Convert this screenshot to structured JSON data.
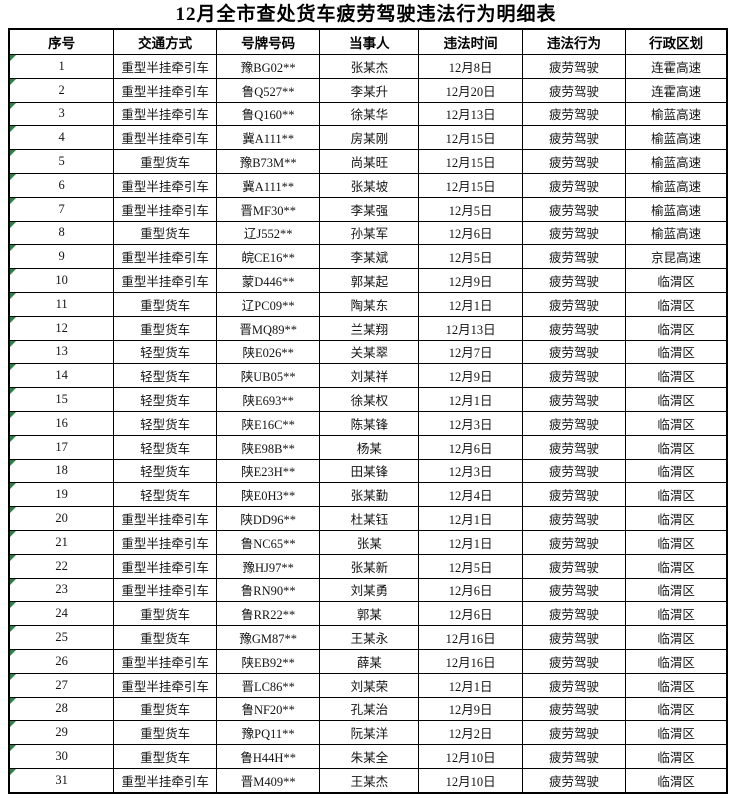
{
  "title": "12月全市查处货车疲劳驾驶违法行为明细表",
  "colors": {
    "background": "#ffffff",
    "border": "#000000",
    "text": "#141414",
    "cell_marker_green": "#1f8a3d"
  },
  "icons": {
    "cell_marker": "corner-triangle-icon"
  },
  "table": {
    "columns": [
      "序号",
      "交通方式",
      "号牌号码",
      "当事人",
      "违法时间",
      "违法行为",
      "行政区划"
    ],
    "rows": [
      [
        "1",
        "重型半挂牵引车",
        "豫BG02**",
        "张某杰",
        "12月8日",
        "疲劳驾驶",
        "连霍高速"
      ],
      [
        "2",
        "重型半挂牵引车",
        "鲁Q527**",
        "李某升",
        "12月20日",
        "疲劳驾驶",
        "连霍高速"
      ],
      [
        "3",
        "重型半挂牵引车",
        "鲁Q160**",
        "徐某华",
        "12月13日",
        "疲劳驾驶",
        "榆蓝高速"
      ],
      [
        "4",
        "重型半挂牵引车",
        "冀A111**",
        "房某刚",
        "12月15日",
        "疲劳驾驶",
        "榆蓝高速"
      ],
      [
        "5",
        "重型货车",
        "豫B73M**",
        "尚某旺",
        "12月15日",
        "疲劳驾驶",
        "榆蓝高速"
      ],
      [
        "6",
        "重型半挂牵引车",
        "冀A111**",
        "张某坡",
        "12月15日",
        "疲劳驾驶",
        "榆蓝高速"
      ],
      [
        "7",
        "重型半挂牵引车",
        "晋MF30**",
        "李某强",
        "12月5日",
        "疲劳驾驶",
        "榆蓝高速"
      ],
      [
        "8",
        "重型货车",
        "辽J552**",
        "孙某军",
        "12月6日",
        "疲劳驾驶",
        "榆蓝高速"
      ],
      [
        "9",
        "重型半挂牵引车",
        "皖CE16**",
        "李某斌",
        "12月5日",
        "疲劳驾驶",
        "京昆高速"
      ],
      [
        "10",
        "重型半挂牵引车",
        "蒙D446**",
        "郭某起",
        "12月9日",
        "疲劳驾驶",
        "临渭区"
      ],
      [
        "11",
        "重型货车",
        "辽PC09**",
        "陶某东",
        "12月1日",
        "疲劳驾驶",
        "临渭区"
      ],
      [
        "12",
        "重型货车",
        "晋MQ89**",
        "兰某翔",
        "12月13日",
        "疲劳驾驶",
        "临渭区"
      ],
      [
        "13",
        "轻型货车",
        "陕E026**",
        "关某翠",
        "12月7日",
        "疲劳驾驶",
        "临渭区"
      ],
      [
        "14",
        "轻型货车",
        "陕UB05**",
        "刘某祥",
        "12月9日",
        "疲劳驾驶",
        "临渭区"
      ],
      [
        "15",
        "轻型货车",
        "陕E693**",
        "徐某权",
        "12月1日",
        "疲劳驾驶",
        "临渭区"
      ],
      [
        "16",
        "轻型货车",
        "陕E16C**",
        "陈某锋",
        "12月3日",
        "疲劳驾驶",
        "临渭区"
      ],
      [
        "17",
        "轻型货车",
        "陕E98B**",
        "杨某",
        "12月6日",
        "疲劳驾驶",
        "临渭区"
      ],
      [
        "18",
        "轻型货车",
        "陕E23H**",
        "田某锋",
        "12月3日",
        "疲劳驾驶",
        "临渭区"
      ],
      [
        "19",
        "轻型货车",
        "陕E0H3**",
        "张某勤",
        "12月4日",
        "疲劳驾驶",
        "临渭区"
      ],
      [
        "20",
        "重型半挂牵引车",
        "陕DD96**",
        "杜某钰",
        "12月1日",
        "疲劳驾驶",
        "临渭区"
      ],
      [
        "21",
        "重型半挂牵引车",
        "鲁NC65**",
        "张某",
        "12月1日",
        "疲劳驾驶",
        "临渭区"
      ],
      [
        "22",
        "重型半挂牵引车",
        "豫HJ97**",
        "张某新",
        "12月5日",
        "疲劳驾驶",
        "临渭区"
      ],
      [
        "23",
        "重型半挂牵引车",
        "鲁RN90**",
        "刘某勇",
        "12月6日",
        "疲劳驾驶",
        "临渭区"
      ],
      [
        "24",
        "重型货车",
        "鲁RR22**",
        "郭某",
        "12月6日",
        "疲劳驾驶",
        "临渭区"
      ],
      [
        "25",
        "重型货车",
        "豫GM87**",
        "王某永",
        "12月16日",
        "疲劳驾驶",
        "临渭区"
      ],
      [
        "26",
        "重型半挂牵引车",
        "陕EB92**",
        "薛某",
        "12月16日",
        "疲劳驾驶",
        "临渭区"
      ],
      [
        "27",
        "重型半挂牵引车",
        "晋LC86**",
        "刘某荣",
        "12月1日",
        "疲劳驾驶",
        "临渭区"
      ],
      [
        "28",
        "重型货车",
        "鲁NF20**",
        "孔某治",
        "12月9日",
        "疲劳驾驶",
        "临渭区"
      ],
      [
        "29",
        "重型货车",
        "豫PQ11**",
        "阮某洋",
        "12月2日",
        "疲劳驾驶",
        "临渭区"
      ],
      [
        "30",
        "重型货车",
        "鲁H44H**",
        "朱某全",
        "12月10日",
        "疲劳驾驶",
        "临渭区"
      ],
      [
        "31",
        "重型半挂牵引车",
        "晋M409**",
        "王某杰",
        "12月10日",
        "疲劳驾驶",
        "临渭区"
      ]
    ]
  }
}
